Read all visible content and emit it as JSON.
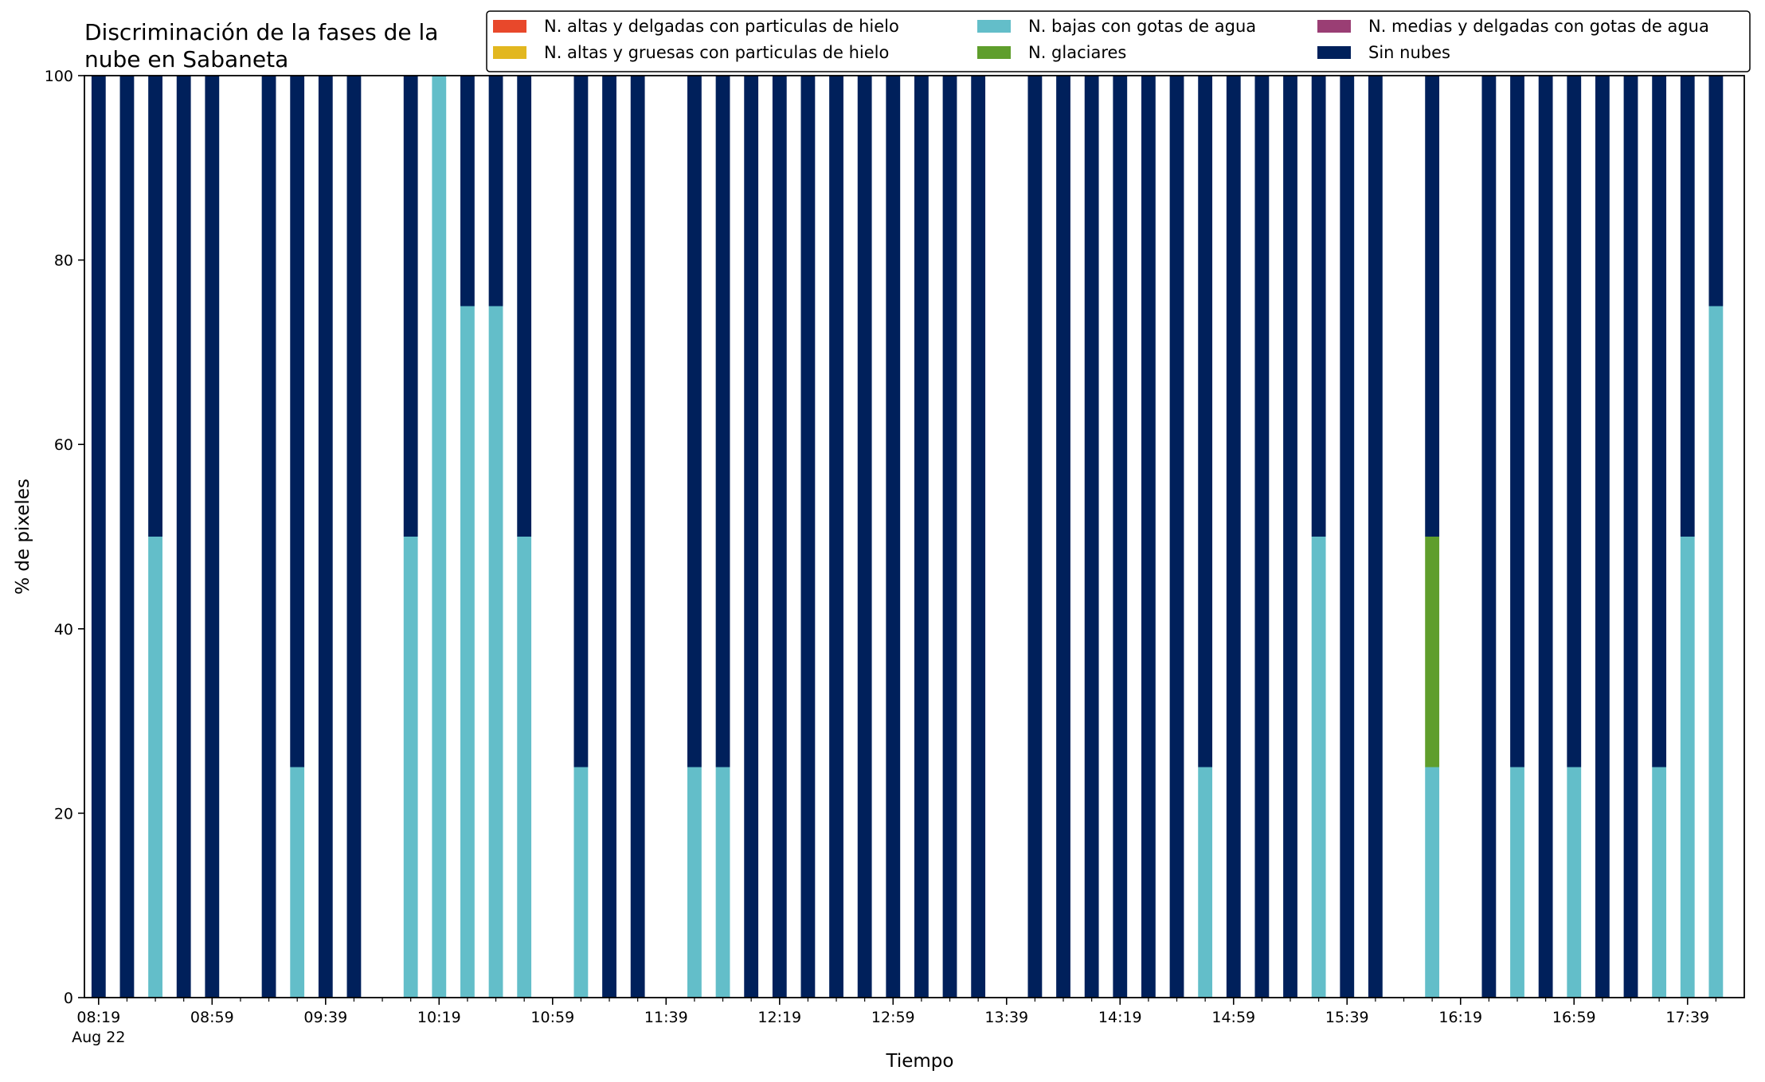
{
  "chart_data": {
    "type": "bar",
    "stacked": true,
    "title_lines": [
      "Discriminación de la fases de la",
      "nube en Sabaneta"
    ],
    "xlabel": "Tiempo",
    "ylabel": "% de pixeles",
    "ylim": [
      0,
      100
    ],
    "yticks": [
      0,
      20,
      40,
      60,
      80,
      100
    ],
    "xlim": [
      "2022-08-22 08:14",
      "2022-08-22 17:59"
    ],
    "bar_interval_minutes": 10,
    "bar_width_minutes": 5,
    "xticks": [
      {
        "time": "2022-08-22 08:19",
        "label": "08:19",
        "sublabel": "Aug 22"
      },
      {
        "time": "2022-08-22 08:59",
        "label": "08:59"
      },
      {
        "time": "2022-08-22 09:39",
        "label": "09:39"
      },
      {
        "time": "2022-08-22 10:19",
        "label": "10:19"
      },
      {
        "time": "2022-08-22 10:59",
        "label": "10:59"
      },
      {
        "time": "2022-08-22 11:39",
        "label": "11:39"
      },
      {
        "time": "2022-08-22 12:19",
        "label": "12:19"
      },
      {
        "time": "2022-08-22 12:59",
        "label": "12:59"
      },
      {
        "time": "2022-08-22 13:39",
        "label": "13:39"
      },
      {
        "time": "2022-08-22 14:19",
        "label": "14:19"
      },
      {
        "time": "2022-08-22 14:59",
        "label": "14:59"
      },
      {
        "time": "2022-08-22 15:39",
        "label": "15:39"
      },
      {
        "time": "2022-08-22 16:19",
        "label": "16:19"
      },
      {
        "time": "2022-08-22 16:59",
        "label": "16:59"
      },
      {
        "time": "2022-08-22 17:39",
        "label": "17:39"
      }
    ],
    "minor_tick_interval_minutes": 10,
    "legend": {
      "placement": "top-right",
      "columns": 3,
      "order": [
        "alta_delgada",
        "alta_gruesa",
        "baja_agua",
        "glaciar",
        "media_agua",
        "sin_nubes"
      ]
    },
    "series": [
      {
        "key": "alta_delgada",
        "name": "N. altas y delgadas con particulas de hielo",
        "color": "#e8482b"
      },
      {
        "key": "alta_gruesa",
        "name": "N. altas y gruesas con particulas de hielo",
        "color": "#e2b71f"
      },
      {
        "key": "baja_agua",
        "name": "N. bajas con gotas de agua",
        "color": "#63bec9"
      },
      {
        "key": "glaciar",
        "name": "N. glaciares",
        "color": "#5f9e2c"
      },
      {
        "key": "media_agua",
        "name": "N. medias y delgadas con gotas de agua",
        "color": "#9a3e74"
      },
      {
        "key": "sin_nubes",
        "name": "Sin nubes",
        "color": "#00205b"
      }
    ],
    "stack_order": [
      "baja_agua",
      "glaciar",
      "alta_delgada",
      "alta_gruesa",
      "media_agua",
      "sin_nubes"
    ],
    "bars": [
      {
        "time": "2022-08-22 08:19",
        "baja_agua": 0,
        "glaciar": 0,
        "sin_nubes": 100
      },
      {
        "time": "2022-08-22 08:29",
        "baja_agua": 0,
        "glaciar": 0,
        "sin_nubes": 100
      },
      {
        "time": "2022-08-22 08:39",
        "baja_agua": 50,
        "glaciar": 0,
        "sin_nubes": 50
      },
      {
        "time": "2022-08-22 08:49",
        "baja_agua": 0,
        "glaciar": 0,
        "sin_nubes": 100
      },
      {
        "time": "2022-08-22 08:59",
        "baja_agua": 0,
        "glaciar": 0,
        "sin_nubes": 100
      },
      {
        "time": "2022-08-22 09:19",
        "baja_agua": 0,
        "glaciar": 0,
        "sin_nubes": 100
      },
      {
        "time": "2022-08-22 09:29",
        "baja_agua": 25,
        "glaciar": 0,
        "sin_nubes": 75
      },
      {
        "time": "2022-08-22 09:39",
        "baja_agua": 0,
        "glaciar": 0,
        "sin_nubes": 100
      },
      {
        "time": "2022-08-22 09:49",
        "baja_agua": 0,
        "glaciar": 0,
        "sin_nubes": 100
      },
      {
        "time": "2022-08-22 10:09",
        "baja_agua": 50,
        "glaciar": 0,
        "sin_nubes": 50
      },
      {
        "time": "2022-08-22 10:19",
        "baja_agua": 100,
        "glaciar": 0,
        "sin_nubes": 0
      },
      {
        "time": "2022-08-22 10:29",
        "baja_agua": 75,
        "glaciar": 0,
        "sin_nubes": 25
      },
      {
        "time": "2022-08-22 10:39",
        "baja_agua": 75,
        "glaciar": 0,
        "sin_nubes": 25
      },
      {
        "time": "2022-08-22 10:49",
        "baja_agua": 50,
        "glaciar": 0,
        "sin_nubes": 50
      },
      {
        "time": "2022-08-22 11:09",
        "baja_agua": 25,
        "glaciar": 0,
        "sin_nubes": 75
      },
      {
        "time": "2022-08-22 11:19",
        "baja_agua": 0,
        "glaciar": 0,
        "sin_nubes": 100
      },
      {
        "time": "2022-08-22 11:29",
        "baja_agua": 0,
        "glaciar": 0,
        "sin_nubes": 100
      },
      {
        "time": "2022-08-22 11:49",
        "baja_agua": 25,
        "glaciar": 0,
        "sin_nubes": 75
      },
      {
        "time": "2022-08-22 11:59",
        "baja_agua": 25,
        "glaciar": 0,
        "sin_nubes": 75
      },
      {
        "time": "2022-08-22 12:09",
        "baja_agua": 0,
        "glaciar": 0,
        "sin_nubes": 100
      },
      {
        "time": "2022-08-22 12:19",
        "baja_agua": 0,
        "glaciar": 0,
        "sin_nubes": 100
      },
      {
        "time": "2022-08-22 12:29",
        "baja_agua": 0,
        "glaciar": 0,
        "sin_nubes": 100
      },
      {
        "time": "2022-08-22 12:39",
        "baja_agua": 0,
        "glaciar": 0,
        "sin_nubes": 100
      },
      {
        "time": "2022-08-22 12:49",
        "baja_agua": 0,
        "glaciar": 0,
        "sin_nubes": 100
      },
      {
        "time": "2022-08-22 12:59",
        "baja_agua": 0,
        "glaciar": 0,
        "sin_nubes": 100
      },
      {
        "time": "2022-08-22 13:09",
        "baja_agua": 0,
        "glaciar": 0,
        "sin_nubes": 100
      },
      {
        "time": "2022-08-22 13:19",
        "baja_agua": 0,
        "glaciar": 0,
        "sin_nubes": 100
      },
      {
        "time": "2022-08-22 13:29",
        "baja_agua": 0,
        "glaciar": 0,
        "sin_nubes": 100
      },
      {
        "time": "2022-08-22 13:49",
        "baja_agua": 0,
        "glaciar": 0,
        "sin_nubes": 100
      },
      {
        "time": "2022-08-22 13:59",
        "baja_agua": 0,
        "glaciar": 0,
        "sin_nubes": 100
      },
      {
        "time": "2022-08-22 14:09",
        "baja_agua": 0,
        "glaciar": 0,
        "sin_nubes": 100
      },
      {
        "time": "2022-08-22 14:19",
        "baja_agua": 0,
        "glaciar": 0,
        "sin_nubes": 100
      },
      {
        "time": "2022-08-22 14:29",
        "baja_agua": 0,
        "glaciar": 0,
        "sin_nubes": 100
      },
      {
        "time": "2022-08-22 14:39",
        "baja_agua": 0,
        "glaciar": 0,
        "sin_nubes": 100
      },
      {
        "time": "2022-08-22 14:49",
        "baja_agua": 25,
        "glaciar": 0,
        "sin_nubes": 75
      },
      {
        "time": "2022-08-22 14:59",
        "baja_agua": 0,
        "glaciar": 0,
        "sin_nubes": 100
      },
      {
        "time": "2022-08-22 15:09",
        "baja_agua": 0,
        "glaciar": 0,
        "sin_nubes": 100
      },
      {
        "time": "2022-08-22 15:19",
        "baja_agua": 0,
        "glaciar": 0,
        "sin_nubes": 100
      },
      {
        "time": "2022-08-22 15:29",
        "baja_agua": 50,
        "glaciar": 0,
        "sin_nubes": 50
      },
      {
        "time": "2022-08-22 15:39",
        "baja_agua": 0,
        "glaciar": 0,
        "sin_nubes": 100
      },
      {
        "time": "2022-08-22 15:49",
        "baja_agua": 0,
        "glaciar": 0,
        "sin_nubes": 100
      },
      {
        "time": "2022-08-22 16:09",
        "baja_agua": 25,
        "glaciar": 25,
        "sin_nubes": 50
      },
      {
        "time": "2022-08-22 16:29",
        "baja_agua": 0,
        "glaciar": 0,
        "sin_nubes": 100
      },
      {
        "time": "2022-08-22 16:39",
        "baja_agua": 25,
        "glaciar": 0,
        "sin_nubes": 75
      },
      {
        "time": "2022-08-22 16:49",
        "baja_agua": 0,
        "glaciar": 0,
        "sin_nubes": 100
      },
      {
        "time": "2022-08-22 16:59",
        "baja_agua": 25,
        "glaciar": 0,
        "sin_nubes": 75
      },
      {
        "time": "2022-08-22 17:09",
        "baja_agua": 0,
        "glaciar": 0,
        "sin_nubes": 100
      },
      {
        "time": "2022-08-22 17:19",
        "baja_agua": 0,
        "glaciar": 0,
        "sin_nubes": 100
      },
      {
        "time": "2022-08-22 17:29",
        "baja_agua": 25,
        "glaciar": 0,
        "sin_nubes": 75
      },
      {
        "time": "2022-08-22 17:39",
        "baja_agua": 50,
        "glaciar": 0,
        "sin_nubes": 50
      },
      {
        "time": "2022-08-22 17:49",
        "baja_agua": 75,
        "glaciar": 0,
        "sin_nubes": 25
      }
    ],
    "grid": false
  }
}
